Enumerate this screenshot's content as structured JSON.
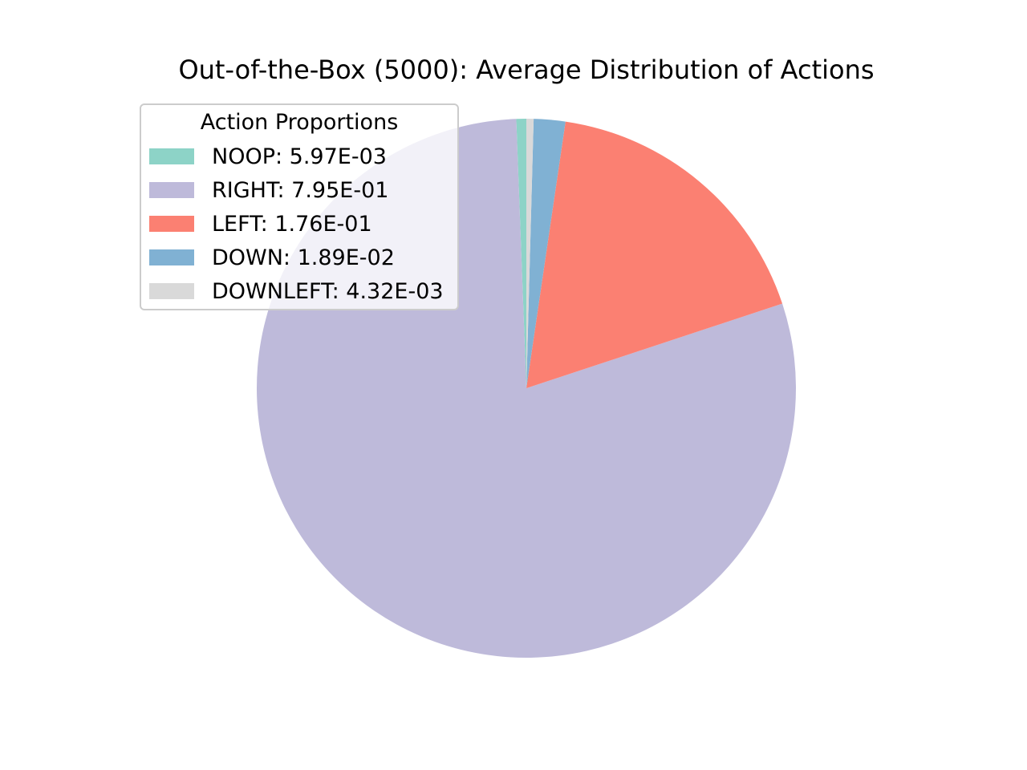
{
  "chart_data": {
    "type": "pie",
    "title": "Out-of-the-Box (5000): Average Distribution of Actions",
    "legend": {
      "title": "Action Proportions",
      "placement": "top-left"
    },
    "slices": [
      {
        "label": "NOOP: 5.97E-03",
        "value": 0.00597,
        "color": "#8dd3c7"
      },
      {
        "label": "RIGHT: 7.95E-01",
        "value": 0.795,
        "color": "#bebada"
      },
      {
        "label": "LEFT: 1.76E-01",
        "value": 0.176,
        "color": "#fb8072"
      },
      {
        "label": "DOWN: 1.89E-02",
        "value": 0.0189,
        "color": "#80b1d3"
      },
      {
        "label": "DOWNLEFT: 4.32E-03",
        "value": 0.00432,
        "color": "#d9d9d9"
      }
    ],
    "start_angle_deg": 90,
    "direction": "counterclockwise"
  }
}
